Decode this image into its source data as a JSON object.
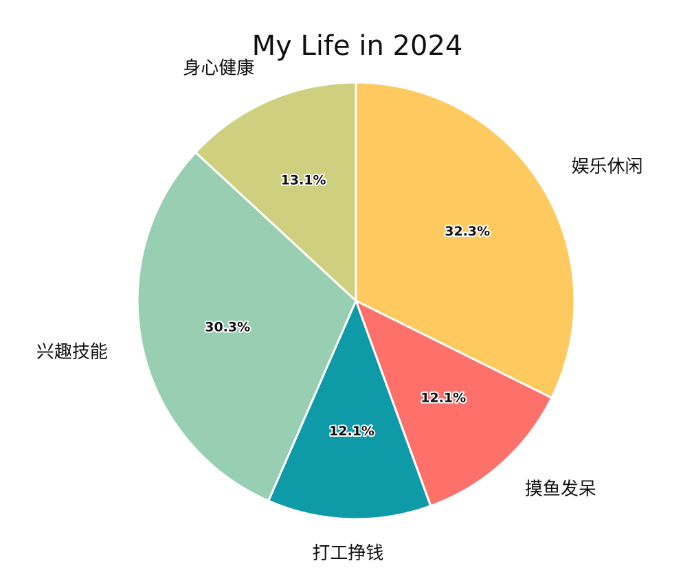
{
  "chart_data": {
    "type": "pie",
    "title": "My Life in 2024",
    "categories": [
      "娱乐休闲",
      "摸鱼发呆",
      "打工挣钱",
      "兴趣技能",
      "身心健康"
    ],
    "values": [
      32.3,
      12.1,
      12.1,
      30.3,
      13.1
    ],
    "labels": [
      "32.3%",
      "12.1%",
      "12.1%",
      "30.3%",
      "13.1%"
    ],
    "colors": [
      "#fec95e",
      "#fe716b",
      "#0f9aa7",
      "#98ceb2",
      "#cfcf80"
    ],
    "start_angle": "12 o'clock",
    "direction": "clockwise",
    "legend": "none"
  }
}
